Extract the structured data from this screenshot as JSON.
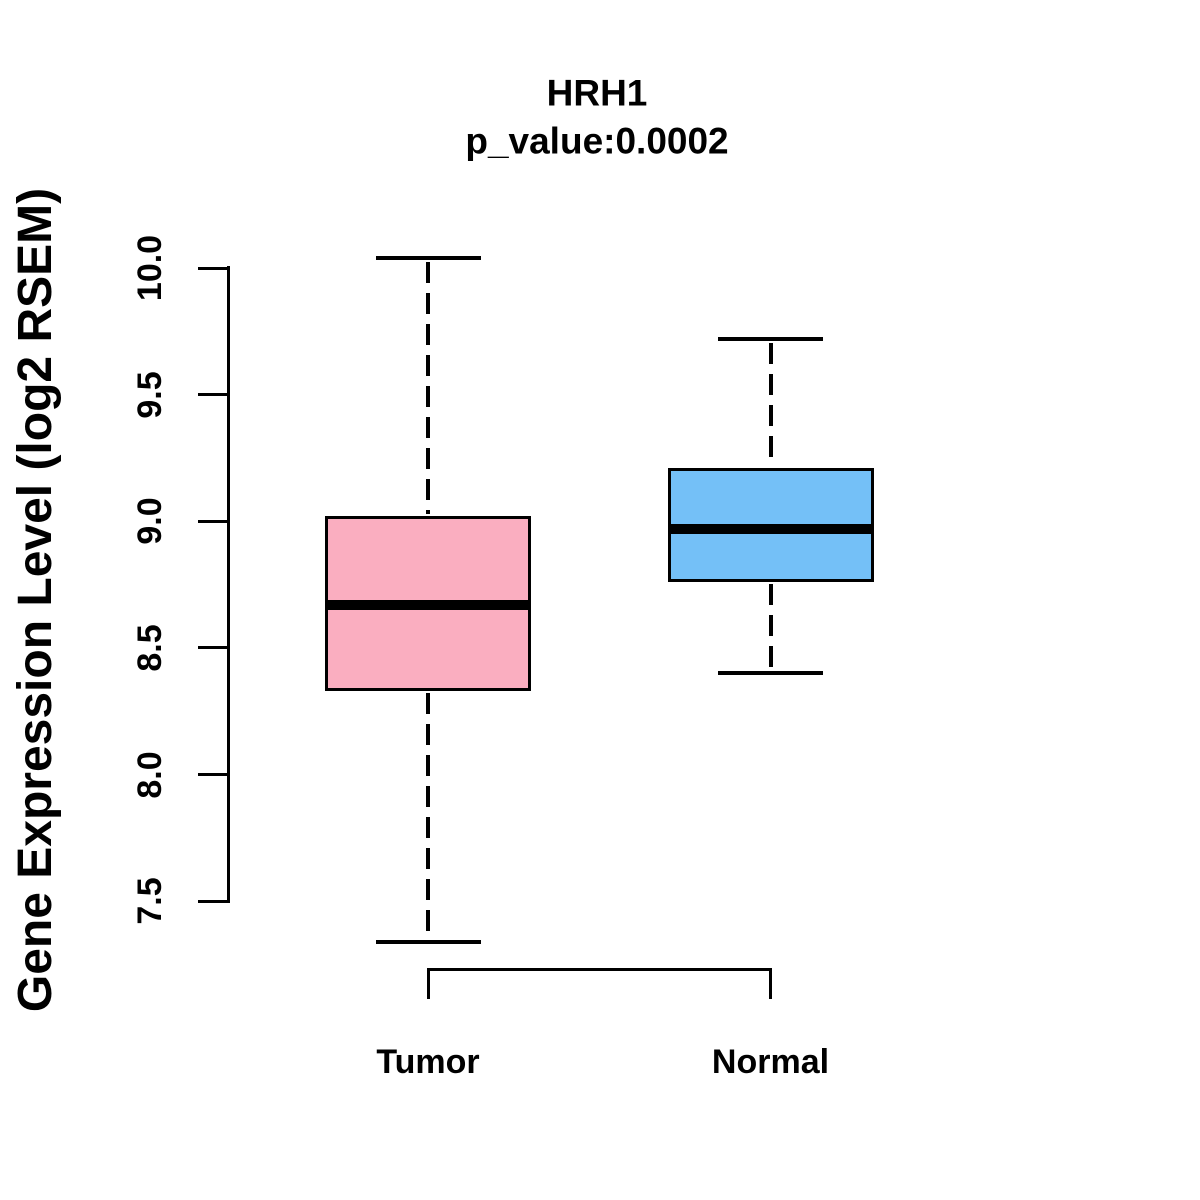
{
  "chart_data": {
    "type": "boxplot",
    "title": "HRH1",
    "subtitle": "p_value:0.0002",
    "ylabel": "Gene Expression Level (log2 RSEM)",
    "xlabel": "",
    "ylim": [
      7.3,
      10.1
    ],
    "yticks": [
      10.0,
      9.5,
      9.0,
      8.5,
      8.0,
      7.5
    ],
    "ytick_labels": [
      "10.0",
      "9.5",
      "9.0",
      "8.5",
      "8.0",
      "7.5"
    ],
    "grid": false,
    "legend_position": "none",
    "groups": [
      {
        "label": "Tumor",
        "fill_color": "#FAAEC0",
        "whisker_low": 7.34,
        "q1": 8.33,
        "median": 8.67,
        "q3": 9.02,
        "whisker_high": 10.04
      },
      {
        "label": "Normal",
        "fill_color": "#74C0F7",
        "whisker_low": 8.4,
        "q1": 8.76,
        "median": 8.97,
        "q3": 9.21,
        "whisker_high": 9.72
      }
    ],
    "significance_bracket": {
      "connects": [
        "Tumor",
        "Normal"
      ],
      "p_value": "0.0002"
    },
    "line_color": "#000000",
    "background_color": "#FFFFFF"
  }
}
